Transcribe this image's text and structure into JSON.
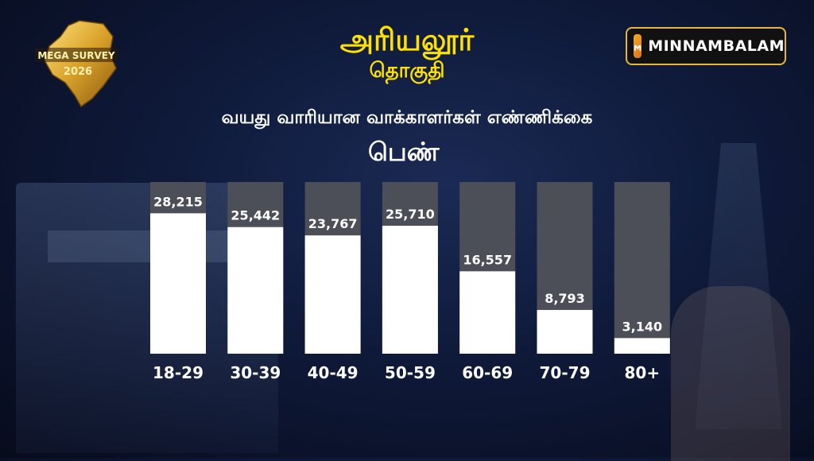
{
  "header": {
    "constituency": "அரியலூர்",
    "constituency_label": "தொகுதி",
    "badge_line1": "MEGA SURVEY",
    "badge_line2": "2026",
    "brand": "MINNAMBALAM"
  },
  "chart_data": {
    "type": "bar",
    "title": "வயது வாரியான வாக்காளர்கள் எண்ணிக்கை",
    "subtitle": "பெண்",
    "categories": [
      "18-29",
      "30-39",
      "40-49",
      "50-59",
      "60-69",
      "70-79",
      "80+"
    ],
    "values": [
      28215,
      25442,
      23767,
      25710,
      16557,
      8793,
      3140
    ],
    "value_labels": [
      "28,215",
      "25,442",
      "23,767",
      "25,710",
      "16,557",
      "8,793",
      "3,140"
    ],
    "ylim": [
      0,
      34500
    ],
    "grid": false,
    "legend": "none"
  },
  "colors": {
    "title": "#ffe100",
    "bar": "#ffffff",
    "bar_track": "#4d4f58",
    "brand_border": "#e8b636"
  }
}
